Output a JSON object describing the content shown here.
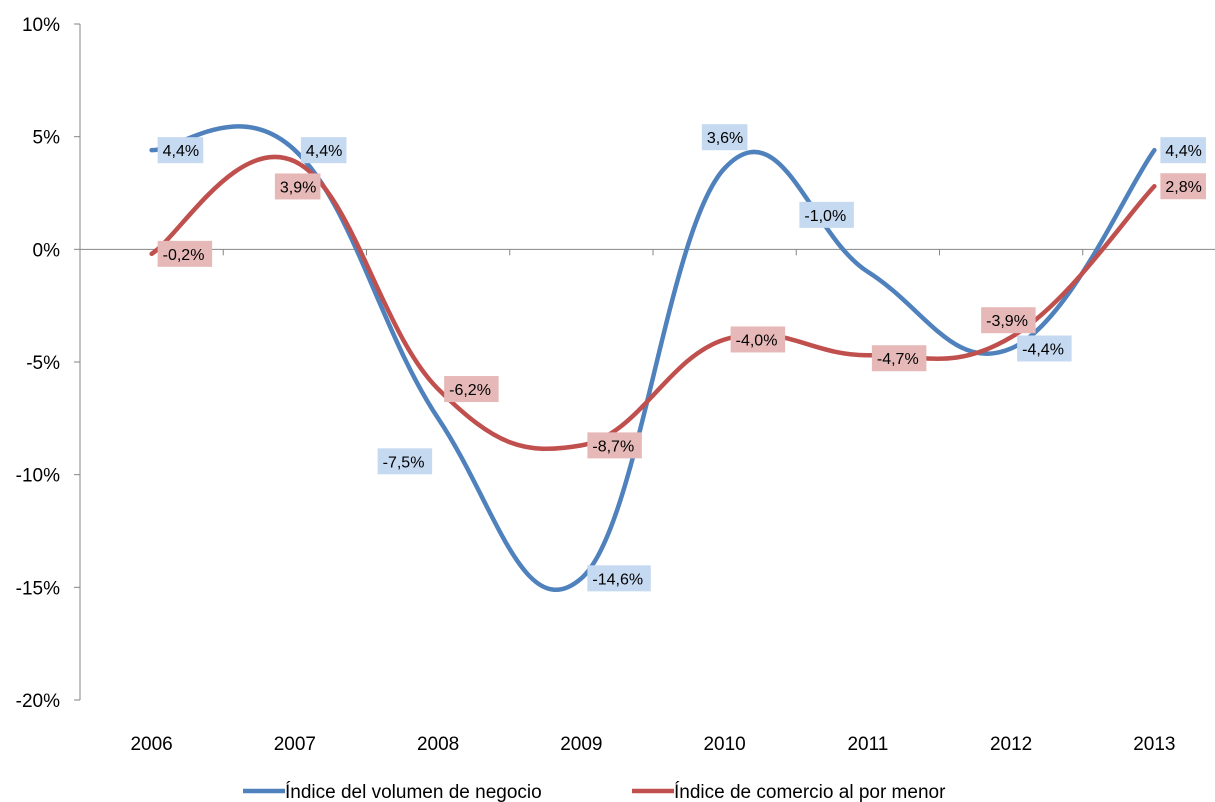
{
  "chart_data": {
    "type": "line",
    "categories": [
      "2006",
      "2007",
      "2008",
      "2009",
      "2010",
      "2011",
      "2012",
      "2013"
    ],
    "series": [
      {
        "name": "Índice del volumen de negocio",
        "color": "#4F81BD",
        "label_bg": "#C5D9F1",
        "values": [
          4.4,
          4.4,
          -7.5,
          -14.6,
          3.6,
          -1.0,
          -4.4,
          4.4
        ],
        "labels": [
          "4,4%",
          "4,4%",
          "-7,5%",
          "-14,6%",
          "3,6%",
          "-1,0%",
          "-4,4%",
          "4,4%"
        ]
      },
      {
        "name": "Índice de comercio al por menor",
        "color": "#C0504D",
        "label_bg": "#E6B9B8",
        "values": [
          -0.2,
          3.9,
          -6.2,
          -8.7,
          -4.0,
          -4.7,
          -3.9,
          2.8
        ],
        "labels": [
          "-0,2%",
          "3,9%",
          "-6,2%",
          "-8,7%",
          "-4,0%",
          "-4,7%",
          "-3,9%",
          "2,8%"
        ]
      }
    ],
    "y_ticks": [
      "10%",
      "5%",
      "0%",
      "-5%",
      "-10%",
      "-15%",
      "-20%"
    ],
    "ylim": [
      -20,
      10
    ],
    "grid": false,
    "legend_position": "bottom",
    "xlabel": "",
    "ylabel": "",
    "title": ""
  }
}
